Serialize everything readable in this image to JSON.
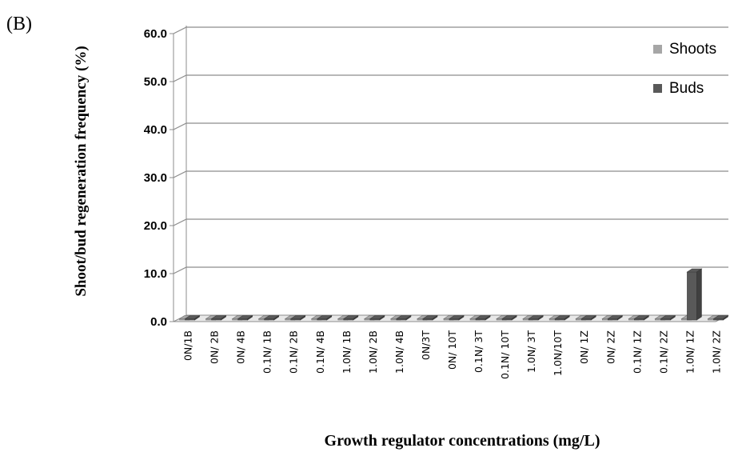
{
  "panel_label": "(B)",
  "chart_data": {
    "type": "bar",
    "ylabel": "Shoot/bud regeneration frequency (%)",
    "xlabel": "Growth regulator concentrations (mg/L)",
    "ylim": [
      0,
      60
    ],
    "yticks": [
      "0.0",
      "10.0",
      "20.0",
      "30.0",
      "40.0",
      "50.0",
      "60.0"
    ],
    "grid": true,
    "legend_position": "top-right",
    "categories": [
      "0N/1B",
      "0N/ 2B",
      "0N/ 4B",
      "0.1N/ 1B",
      "0.1N/ 2B",
      "0.1N/ 4B",
      "1.0N/ 1B",
      "1.0N/ 2B",
      "1.0N/ 4B",
      "0N/3T",
      "0N/ 10T",
      "0.1N/ 3T",
      "0.1N/ 10T",
      "1.0N/ 3T",
      "1.0N/10T",
      "0N/ 1Z",
      "0N/ 2Z",
      "0.1N/ 1Z",
      "0.1N/ 2Z",
      "1.0N/ 1Z",
      "1.0N/ 2Z"
    ],
    "series": [
      {
        "name": "Shoots",
        "color": "#a6a6a6",
        "values": [
          0,
          0,
          0,
          0,
          0,
          0,
          0,
          0,
          0,
          0,
          0,
          0,
          0,
          0,
          0,
          0,
          0,
          0,
          0,
          0,
          0
        ]
      },
      {
        "name": "Buds",
        "color": "#595959",
        "values": [
          0,
          0,
          0,
          0,
          0,
          0,
          0,
          0,
          0,
          0,
          0,
          0,
          0,
          0,
          0,
          0,
          0,
          0,
          0,
          10,
          0
        ]
      }
    ]
  }
}
